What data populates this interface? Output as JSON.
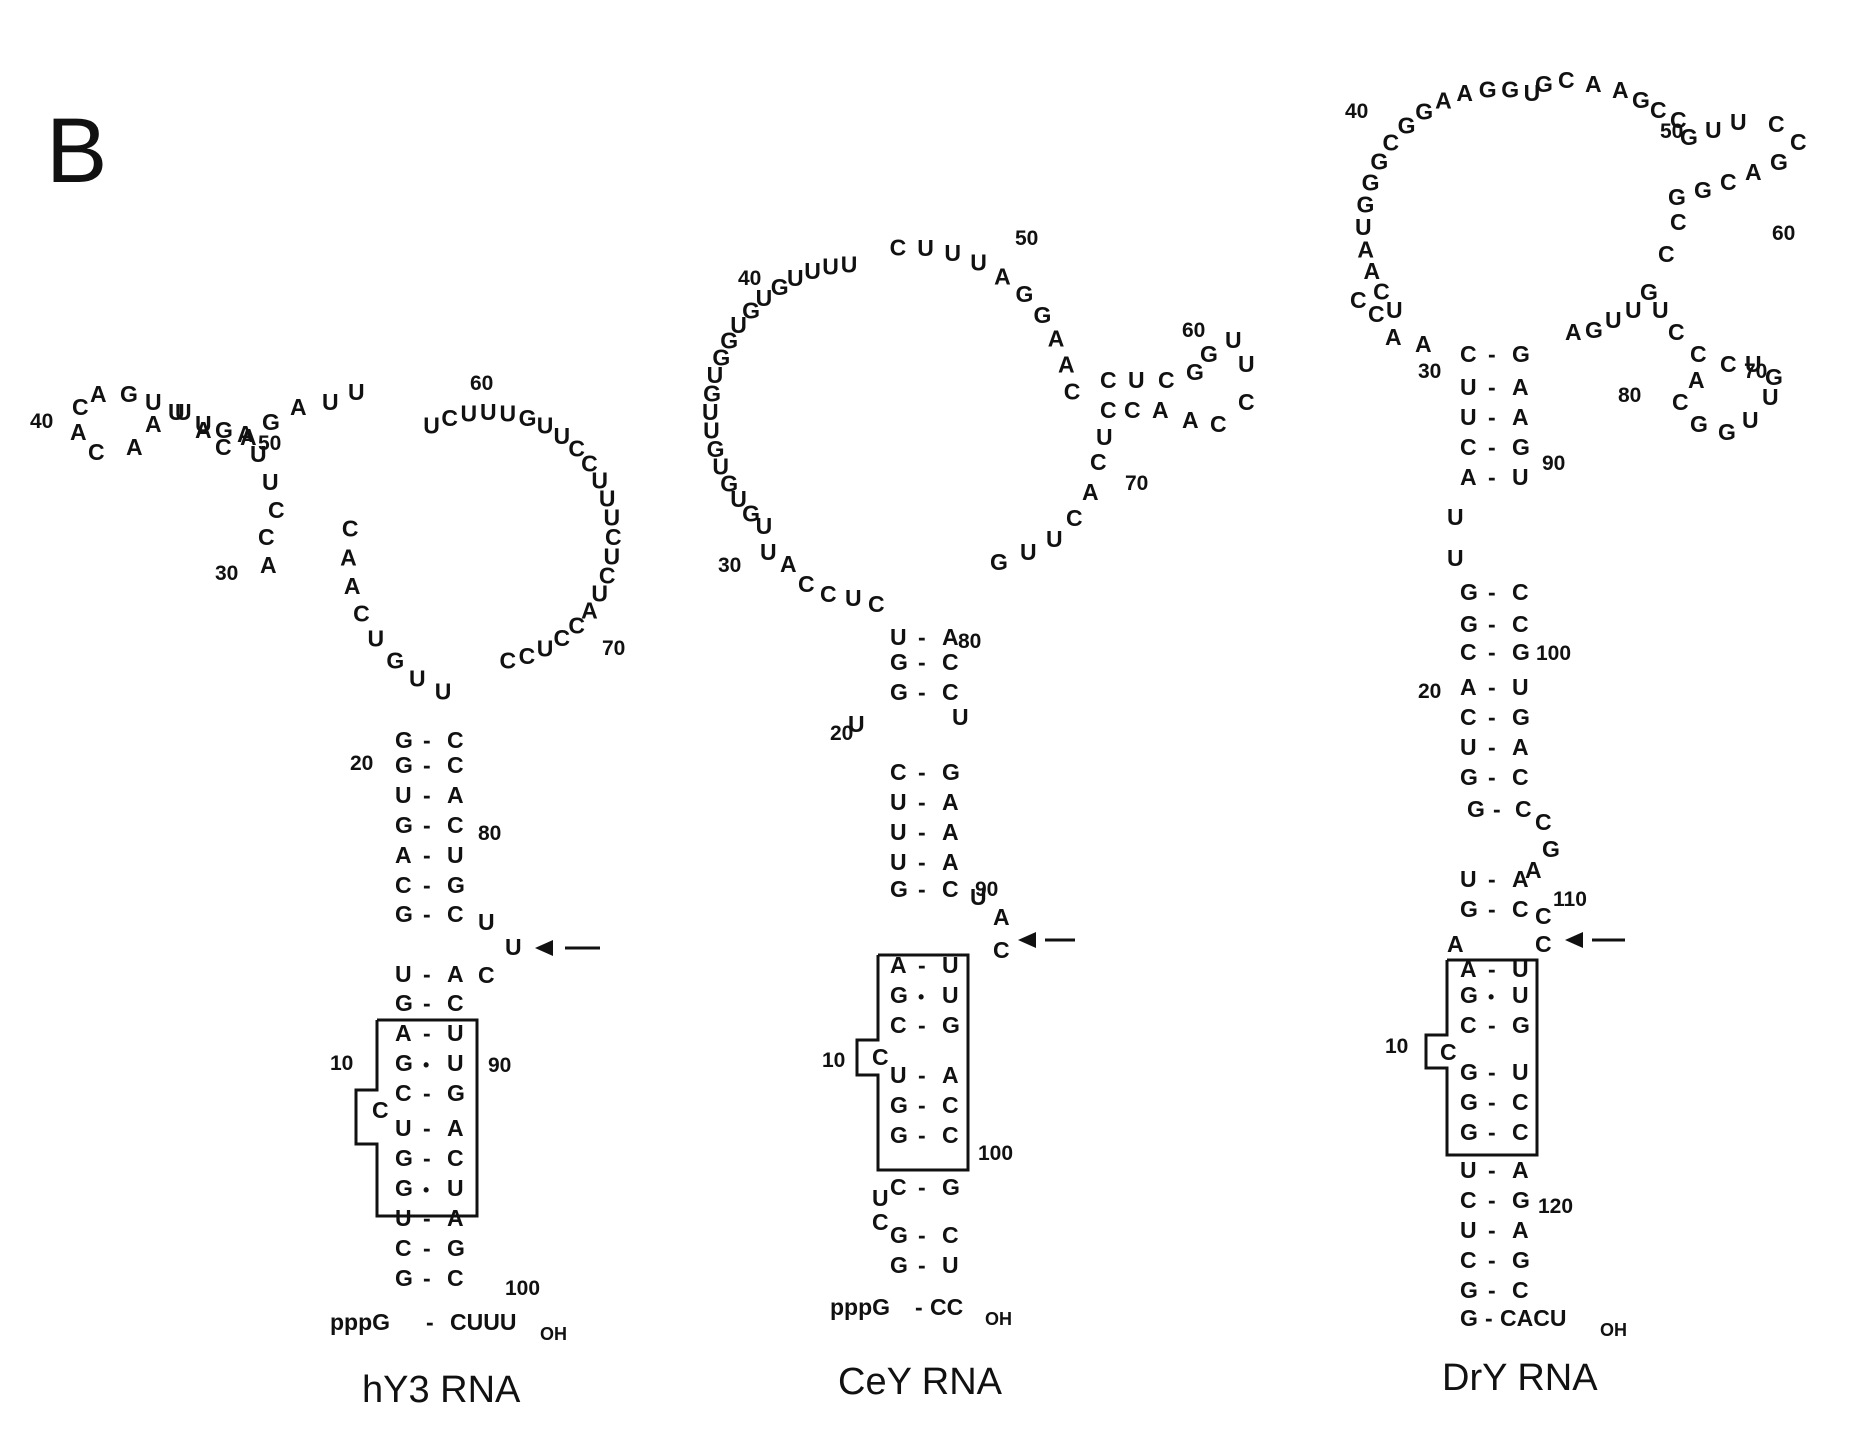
{
  "panel_letter": "B",
  "structures": [
    {
      "id": "hy3",
      "label": "hY3 RNA",
      "five_prime": "pppG",
      "three_prime": "CUUU",
      "terminus": "OH",
      "stem_pairs": [
        [
          "U",
          "A"
        ],
        [
          "G",
          "C"
        ],
        [
          "A",
          "U"
        ],
        [
          "G",
          "U"
        ],
        [
          "C",
          "G"
        ],
        [
          "U",
          "A"
        ],
        [
          "G",
          "C"
        ],
        [
          "G",
          "U"
        ],
        [
          "U",
          "A"
        ],
        [
          "C",
          "G"
        ],
        [
          "G",
          "C"
        ]
      ],
      "upper_pairs": [
        [
          "G",
          "C"
        ],
        [
          "G",
          "C"
        ],
        [
          "U",
          "A"
        ],
        [
          "G",
          "C"
        ],
        [
          "A",
          "U"
        ],
        [
          "C",
          "G"
        ],
        [
          "G",
          "C"
        ]
      ],
      "bulge": "C",
      "bulge_3prime": [
        "U",
        "U",
        "C"
      ],
      "loop": [
        "U",
        "U",
        "G",
        "U",
        "C",
        "A",
        "A",
        "C",
        "A",
        "C",
        "C",
        "U",
        "U",
        "A",
        "G",
        "U",
        "U",
        "A",
        "A",
        "C",
        "A",
        "C",
        "A",
        "G",
        "U",
        "U",
        "A",
        "C",
        "A",
        "G",
        "A",
        "U",
        "U",
        "U",
        "C",
        "U",
        "U",
        "U",
        "G",
        "U",
        "U",
        "C",
        "C",
        "U",
        "U",
        "U",
        "C",
        "U",
        "C",
        "U",
        "A",
        "C",
        "C",
        "U",
        "C",
        "C"
      ],
      "numbers": [
        "10",
        "20",
        "30",
        "40",
        "50",
        "60",
        "70",
        "80",
        "90",
        "100"
      ]
    },
    {
      "id": "cey",
      "label": "CeY RNA",
      "five_prime": "pppG",
      "three_prime": "CC",
      "terminus": "OH",
      "stem_pairs": [
        [
          "A",
          "U"
        ],
        [
          "G",
          "U"
        ],
        [
          "C",
          "G"
        ],
        [
          "U",
          "A"
        ],
        [
          "G",
          "C"
        ],
        [
          "G",
          "C"
        ],
        [
          "C",
          "G"
        ],
        [
          "G",
          "C"
        ],
        [
          "G",
          "U"
        ]
      ],
      "upper_pairs": [
        [
          "U",
          "A"
        ],
        [
          "G",
          "C"
        ],
        [
          "G",
          "C"
        ],
        [
          "A",
          "U"
        ],
        [
          "C",
          "G"
        ],
        [
          "U",
          "A"
        ],
        [
          "U",
          "A"
        ],
        [
          "U",
          "A"
        ],
        [
          "G",
          "C"
        ]
      ],
      "bulge": "C",
      "bulge_3prime": [
        "U",
        "A",
        "C"
      ],
      "loop": [
        "C",
        "U",
        "C",
        "C",
        "A",
        "U",
        "U",
        "G",
        "U",
        "G",
        "U",
        "G",
        "U",
        "U",
        "G",
        "U",
        "G",
        "G",
        "U",
        "G",
        "U",
        "G",
        "U",
        "U",
        "U",
        "U",
        "C",
        "U",
        "U",
        "U",
        "A",
        "G",
        "G",
        "A",
        "A",
        "C",
        "C",
        "U",
        "C",
        "G",
        "G",
        "U",
        "U",
        "C",
        "C",
        "A",
        "A",
        "C",
        "C",
        "U",
        "C",
        "A",
        "C",
        "U",
        "U",
        "G"
      ],
      "numbers": [
        "10",
        "20",
        "30",
        "40",
        "50",
        "60",
        "70",
        "80",
        "90",
        "100"
      ]
    },
    {
      "id": "dry",
      "label": "DrY RNA",
      "five_prime": "G",
      "three_prime": "CACU",
      "terminus": "OH",
      "stem_pairs": [
        [
          "A",
          "U"
        ],
        [
          "G",
          "U"
        ],
        [
          "C",
          "G"
        ],
        [
          "G",
          "U"
        ],
        [
          "G",
          "C"
        ],
        [
          "G",
          "C"
        ],
        [
          "U",
          "A"
        ],
        [
          "C",
          "G"
        ],
        [
          "U",
          "A"
        ],
        [
          "C",
          "G"
        ],
        [
          "G",
          "C"
        ]
      ],
      "upper_pairs": [
        [
          "C",
          "G"
        ],
        [
          "U",
          "A"
        ],
        [
          "U",
          "A"
        ],
        [
          "C",
          "G"
        ],
        [
          "A",
          "U"
        ],
        [
          "G",
          "C"
        ],
        [
          "G",
          "C"
        ],
        [
          "C",
          "G"
        ],
        [
          "A",
          "U"
        ],
        [
          "C",
          "G"
        ],
        [
          "U",
          "A"
        ],
        [
          "G",
          "C"
        ],
        [
          "G",
          "C"
        ],
        [
          "U",
          "A"
        ],
        [
          "G",
          "C"
        ]
      ],
      "bulge": "C",
      "loop": [
        "A",
        "A",
        "C",
        "C",
        "U",
        "C",
        "A",
        "A",
        "U",
        "G",
        "G",
        "G",
        "C",
        "G",
        "G",
        "A",
        "A",
        "G",
        "G",
        "U",
        "G",
        "C",
        "A",
        "A",
        "G",
        "C",
        "C",
        "G",
        "U",
        "U",
        "C",
        "C",
        "G",
        "A",
        "C",
        "G",
        "G",
        "C",
        "C",
        "G",
        "U",
        "U",
        "G",
        "A",
        "U",
        "C",
        "C",
        "A",
        "C",
        "G",
        "G",
        "U",
        "U",
        "G",
        "U",
        "C"
      ],
      "numbers": [
        "10",
        "20",
        "30",
        "40",
        "50",
        "60",
        "70",
        "80",
        "90",
        "100",
        "110",
        "120"
      ]
    }
  ]
}
